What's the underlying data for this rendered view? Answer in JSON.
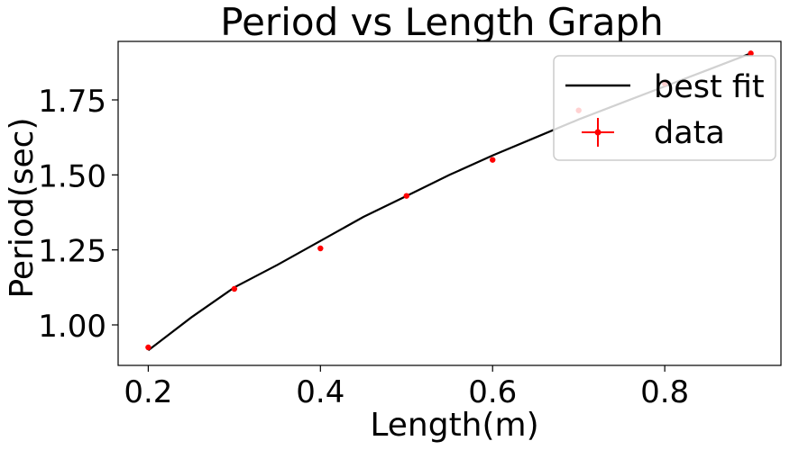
{
  "chart_data": {
    "type": "scatter",
    "title": "Period vs Length Graph",
    "xlabel": "Length(m)",
    "ylabel": "Period(sec)",
    "xlim": [
      0.165,
      0.935
    ],
    "ylim": [
      0.865,
      1.945
    ],
    "x_ticks": [
      0.2,
      0.4,
      0.6,
      0.8
    ],
    "y_ticks": [
      1.0,
      1.25,
      1.5,
      1.75
    ],
    "grid": false,
    "legend_position": "top-right",
    "series": [
      {
        "name": "best fit",
        "kind": "line",
        "color": "#000000",
        "x": [
          0.2,
          0.25,
          0.3,
          0.35,
          0.4,
          0.45,
          0.5,
          0.55,
          0.6,
          0.65,
          0.7,
          0.75,
          0.8,
          0.85,
          0.9
        ],
        "y": [
          0.915,
          1.025,
          1.125,
          1.2,
          1.28,
          1.36,
          1.43,
          1.5,
          1.565,
          1.625,
          1.685,
          1.74,
          1.795,
          1.85,
          1.905
        ]
      },
      {
        "name": "data",
        "kind": "errorbar",
        "color": "#ff0000",
        "x": [
          0.2,
          0.3,
          0.4,
          0.5,
          0.6,
          0.7,
          0.8,
          0.9
        ],
        "y": [
          0.925,
          1.12,
          1.255,
          1.43,
          1.55,
          1.715,
          1.805,
          1.905
        ]
      }
    ]
  }
}
